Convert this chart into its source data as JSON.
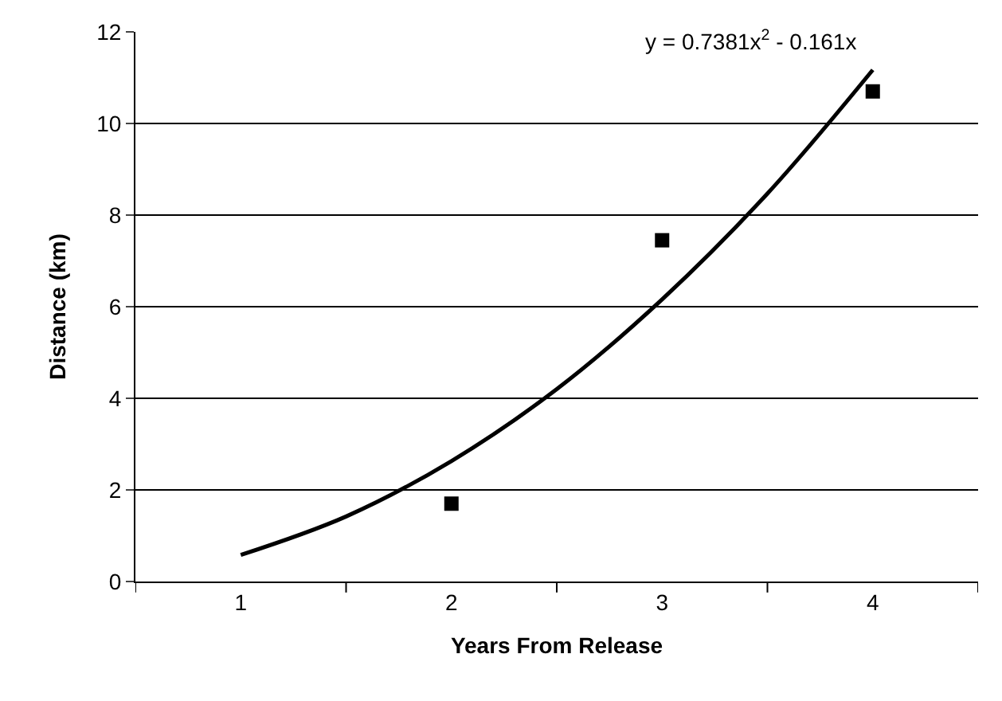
{
  "chart_data": {
    "type": "scatter",
    "xlabel": "Years From Release",
    "ylabel": "Distance (km)",
    "xlim": [
      0.5,
      4.5
    ],
    "xticks": [
      {
        "value": 0.5,
        "label": null
      },
      {
        "value": 1,
        "label": "1"
      },
      {
        "value": 1.5,
        "label": null
      },
      {
        "value": 2,
        "label": "2"
      },
      {
        "value": 2.5,
        "label": null
      },
      {
        "value": 3,
        "label": "3"
      },
      {
        "value": 3.5,
        "label": null
      },
      {
        "value": 4,
        "label": "4"
      },
      {
        "value": 4.5,
        "label": null
      }
    ],
    "ylim": [
      0,
      12
    ],
    "yticks": [
      0,
      2,
      4,
      6,
      8,
      10,
      12
    ],
    "grid": "y",
    "series": [
      {
        "marker": "square",
        "color": "#000000",
        "x": [
          2,
          3,
          4
        ],
        "values": [
          1.7,
          7.45,
          10.7
        ]
      },
      {
        "type": "line",
        "marker": "none",
        "line_style": "solid",
        "color": "#000000",
        "x": [
          1,
          1.5,
          2,
          2.5,
          3,
          3.5,
          4
        ],
        "values": [
          0.58,
          1.42,
          2.63,
          4.2,
          6.16,
          8.47,
          11.17
        ]
      }
    ],
    "annotations": [
      "y = 0.7381x$^{2}$ - 0.161x"
    ]
  }
}
